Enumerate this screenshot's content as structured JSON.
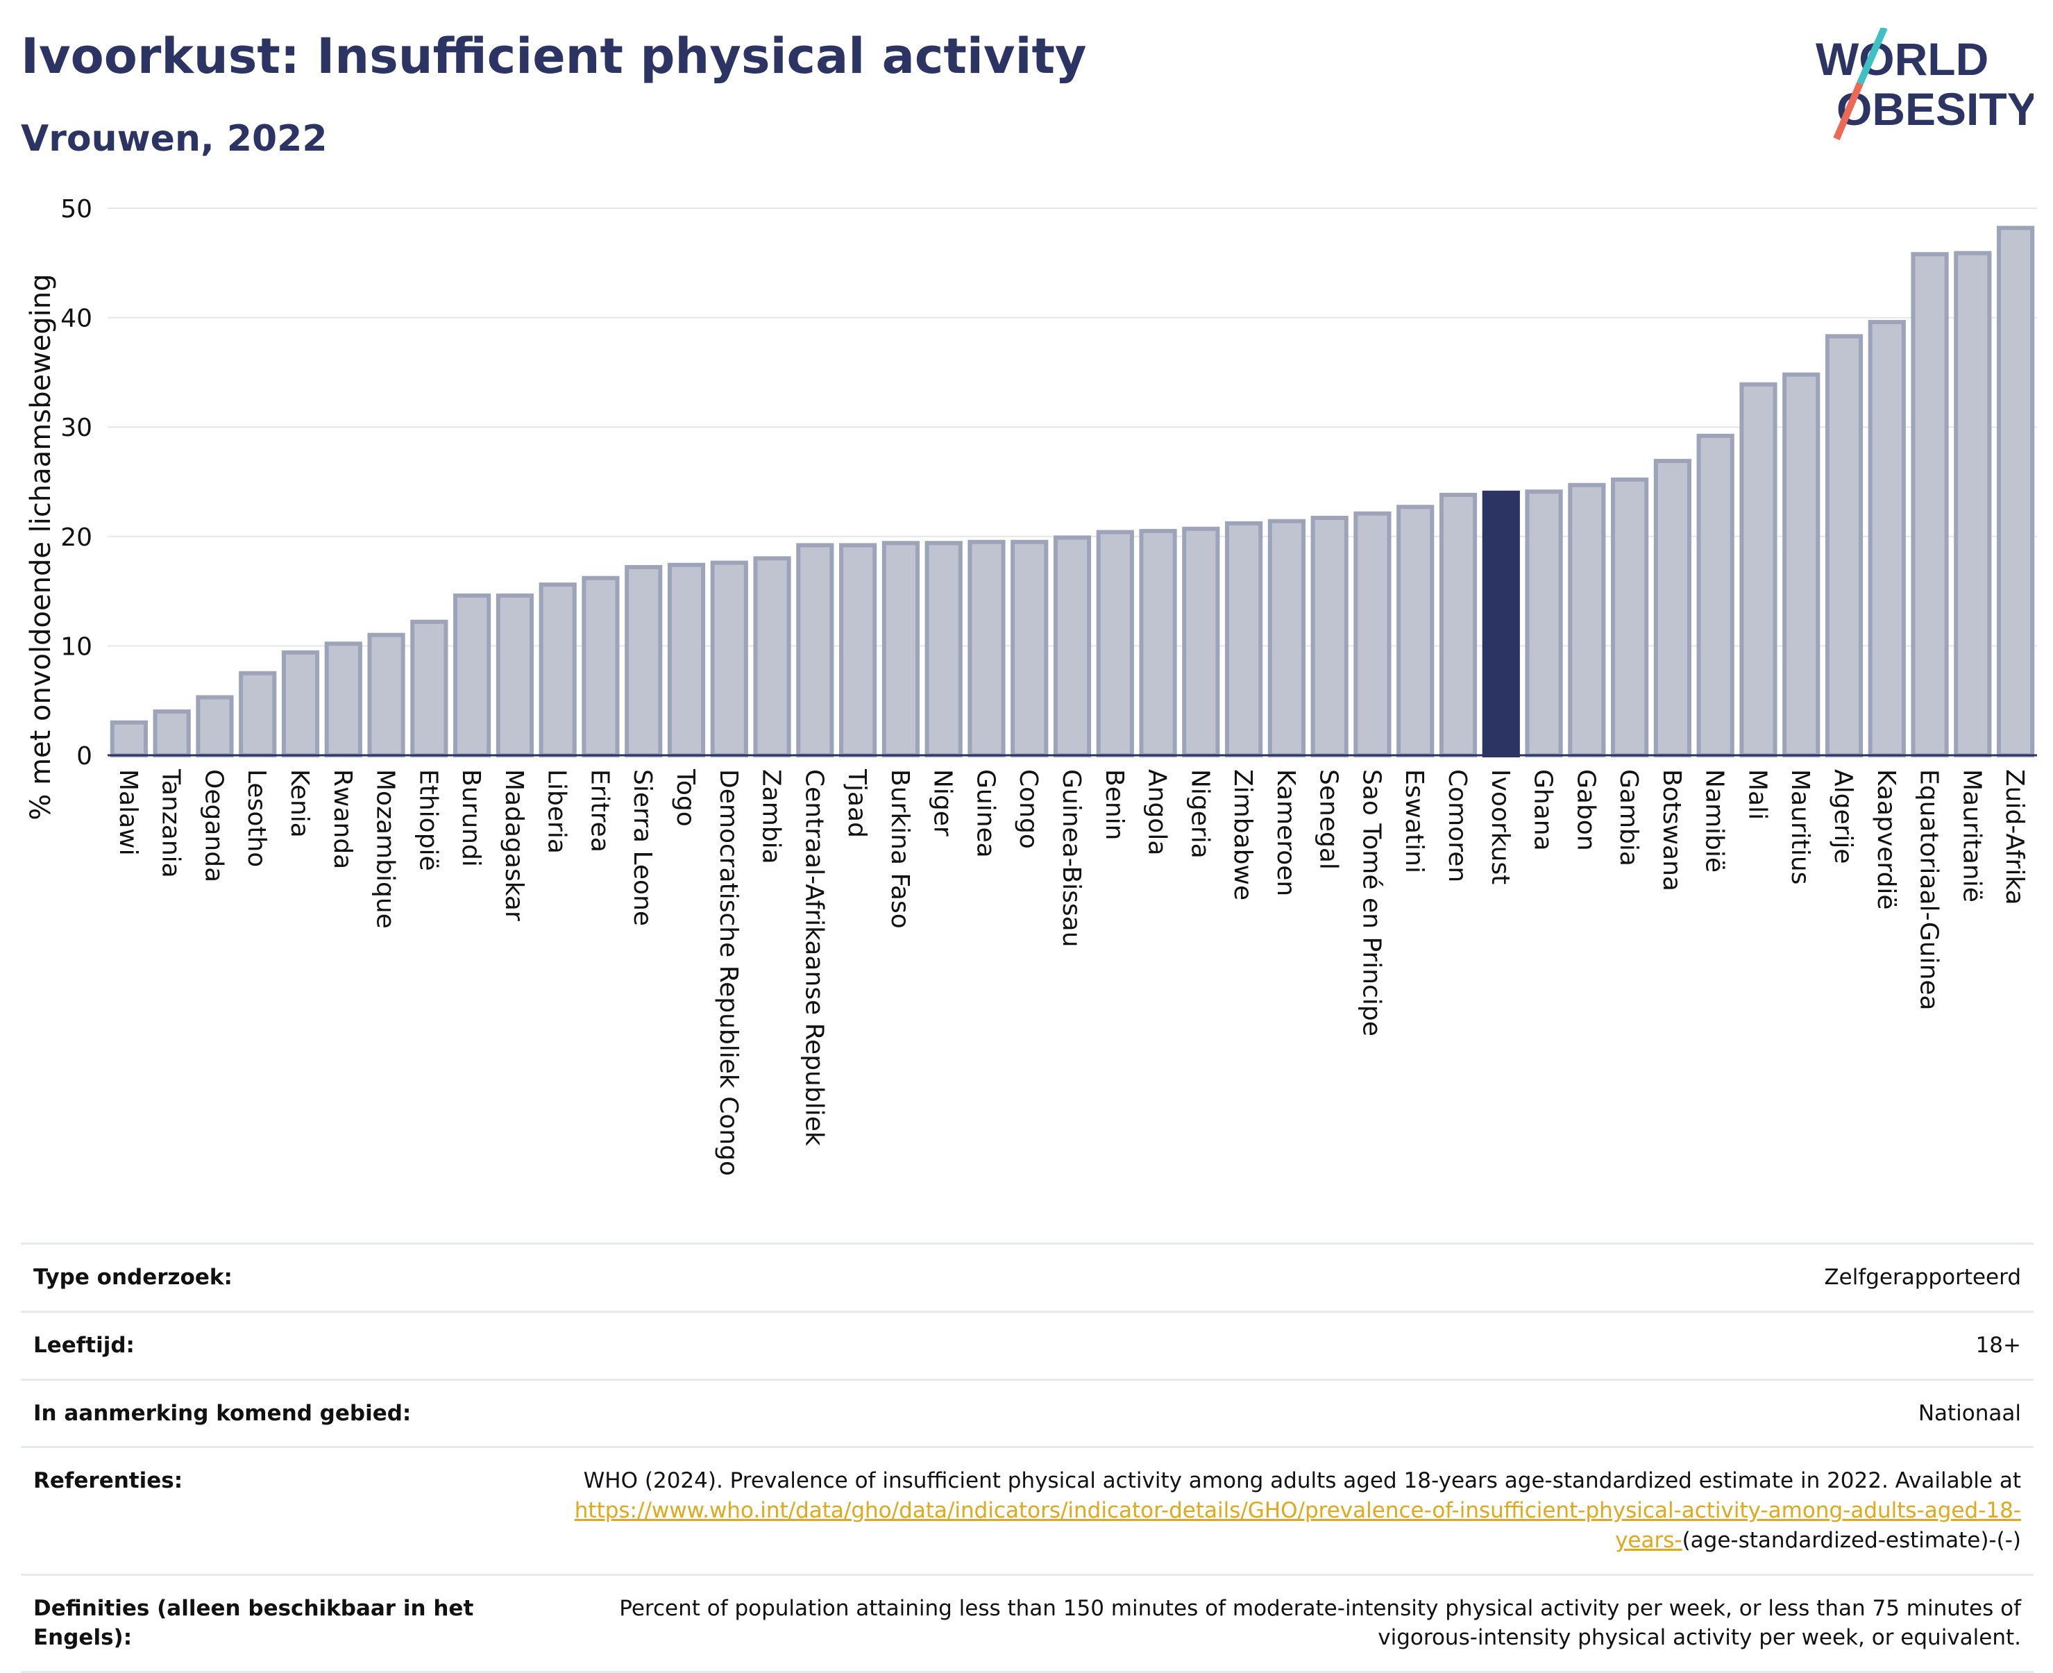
{
  "header": {
    "title": "Ivoorkust: Insufficient physical activity",
    "subtitle": "Vrouwen, 2022"
  },
  "logo": {
    "line1": "WORLD",
    "line2": "OBESITY"
  },
  "colors": {
    "bar_fill": "#c0c4d0",
    "bar_stroke": "#9da3b9",
    "highlight": "#2b3462",
    "logo_teal": "#3fc0c2",
    "logo_coral": "#ea6a56"
  },
  "chart_data": {
    "type": "bar",
    "ylabel": "% met onvoldoende lichaamsbeweging",
    "ylim": [
      0,
      50
    ],
    "yticks": [
      0,
      10,
      20,
      30,
      40,
      50
    ],
    "grid": true,
    "highlight": "Ivoorkust",
    "categories": [
      "Malawi",
      "Tanzania",
      "Oeganda",
      "Lesotho",
      "Kenia",
      "Rwanda",
      "Mozambique",
      "Ethiopië",
      "Burundi",
      "Madagaskar",
      "Liberia",
      "Eritrea",
      "Sierra Leone",
      "Togo",
      "Democratische Republiek Congo",
      "Zambia",
      "Centraal-Afrikaanse Republiek",
      "Tjaad",
      "Burkina Faso",
      "Niger",
      "Guinea",
      "Congo",
      "Guinea-Bissau",
      "Benin",
      "Angola",
      "Nigeria",
      "Zimbabwe",
      "Kameroen",
      "Senegal",
      "Sao Tomé en Principe",
      "Eswatini",
      "Comoren",
      "Ivoorkust",
      "Ghana",
      "Gabon",
      "Gambia",
      "Botswana",
      "Namibië",
      "Mali",
      "Mauritius",
      "Algerije",
      "Kaapverdië",
      "Equatoriaal-Guinea",
      "Mauritanië",
      "Zuid-Afrika"
    ],
    "values": [
      3.0,
      4.0,
      5.3,
      7.5,
      9.4,
      10.2,
      11.0,
      12.2,
      14.6,
      14.6,
      15.6,
      16.2,
      17.2,
      17.4,
      17.6,
      18.0,
      19.2,
      19.2,
      19.4,
      19.4,
      19.5,
      19.5,
      19.9,
      20.4,
      20.5,
      20.7,
      21.2,
      21.4,
      21.7,
      22.1,
      22.7,
      23.8,
      24.0,
      24.1,
      24.7,
      25.2,
      26.9,
      29.2,
      33.9,
      34.8,
      38.3,
      39.6,
      45.8,
      45.9,
      48.2
    ]
  },
  "info": {
    "rows": [
      {
        "label": "Type onderzoek:",
        "value": "Zelfgerapporteerd"
      },
      {
        "label": "Leeftijd:",
        "value": "18+"
      },
      {
        "label": "In aanmerking komend gebied:",
        "value": "Nationaal"
      }
    ],
    "references": {
      "label": "Referenties:",
      "text": "WHO (2024). Prevalence of insufficient physical activity among adults aged 18-years age-standardized estimate in 2022. Available at",
      "link": "https://www.who.int/data/gho/data/indicators/indicator-details/GHO/prevalence-of-insufficient-physical-activity-among-adults-aged-18-years-",
      "suffix": "(age-standardized-estimate)-(-)"
    },
    "definitions": {
      "label": "Definities (alleen beschikbaar in het Engels):",
      "value": "Percent of population attaining less than 150 minutes of moderate-intensity physical activity per week, or less than 75 minutes of vigorous-intensity physical activity per week, or equivalent."
    }
  }
}
